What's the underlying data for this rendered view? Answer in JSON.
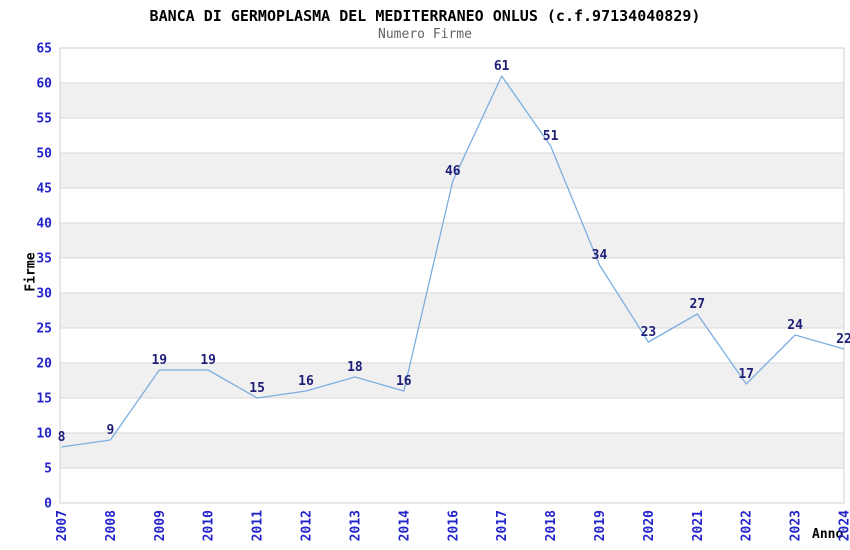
{
  "figure": {
    "title": "BANCA DI GERMOPLASMA DEL MEDITERRANEO ONLUS (c.f.97134040829)",
    "subtitle": "Numero Firme"
  },
  "chart_data": {
    "type": "line",
    "title": "BANCA DI GERMOPLASMA DEL MEDITERRANEO ONLUS (c.f.97134040829)",
    "subtitle": "Numero Firme",
    "xlabel": "Anno",
    "ylabel": "Firme",
    "categories": [
      "2007",
      "2008",
      "2009",
      "2010",
      "2011",
      "2012",
      "2013",
      "2014",
      "2016",
      "2017",
      "2018",
      "2019",
      "2020",
      "2021",
      "2022",
      "2023",
      "2024"
    ],
    "values": [
      8,
      9,
      19,
      19,
      15,
      16,
      18,
      16,
      46,
      61,
      51,
      34,
      23,
      27,
      17,
      24,
      22
    ],
    "point_labels": [
      "8",
      "9",
      "19",
      "19",
      "15",
      "16",
      "18",
      "16",
      "46",
      "61",
      "51",
      "34",
      "23",
      "27",
      "17",
      "24",
      "22"
    ],
    "ylim": [
      0,
      65
    ],
    "ytick_step": 5,
    "yticks": [
      0,
      5,
      10,
      15,
      20,
      25,
      30,
      35,
      40,
      45,
      50,
      55,
      60,
      65
    ],
    "grid": true,
    "banded_background": true,
    "legend": "none",
    "colors": {
      "line": "#7cafe0",
      "point_label": "#1f1f78",
      "tick_label": "#2424cc",
      "axis_title": "#000000",
      "title": "#000000",
      "subtitle": "#646464",
      "band": "#f0f0f0",
      "gridline": "#d8d8d8",
      "plot_border": "#d0d0d0",
      "background": "#ffffff"
    }
  }
}
